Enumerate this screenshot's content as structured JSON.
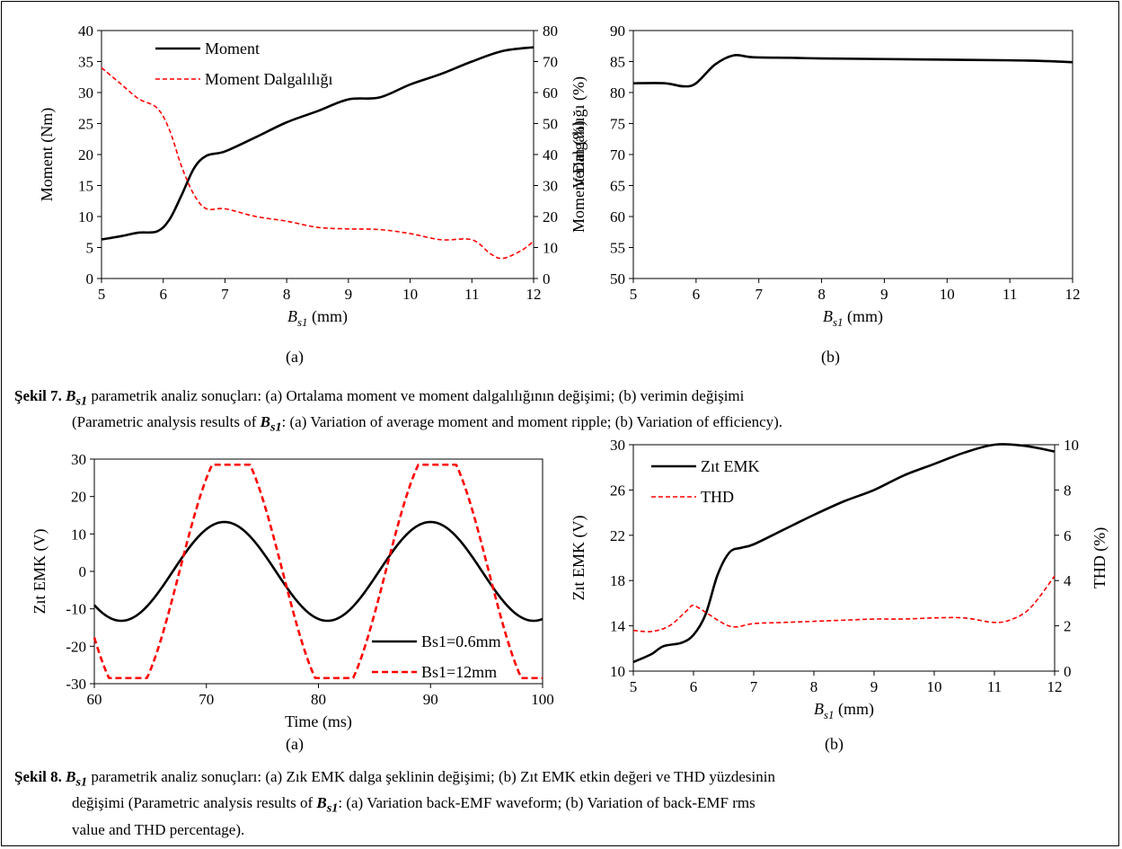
{
  "chart_data": [
    {
      "id": "fig7a",
      "type": "line",
      "xlabel_var": "B",
      "xlabel_sub": "s1",
      "xlabel_unit": " (mm)",
      "ylabel": "Moment (Nm)",
      "y2label": "Moment Dalgalılığı (%)",
      "xlim": [
        5,
        12
      ],
      "ylim": [
        0,
        40
      ],
      "y2lim": [
        0,
        80
      ],
      "xticks": [
        5,
        6,
        7,
        8,
        9,
        10,
        11,
        12
      ],
      "yticks": [
        0,
        5,
        10,
        15,
        20,
        25,
        30,
        35,
        40
      ],
      "y2ticks": [
        0,
        10,
        20,
        30,
        40,
        50,
        60,
        70,
        80
      ],
      "legend_position": "top-left",
      "series": [
        {
          "name": "Moment",
          "axis": "left",
          "style": "solid",
          "color": "#000000",
          "x": [
            5,
            5.3,
            5.6,
            5.9,
            6.1,
            6.3,
            6.5,
            6.7,
            7,
            7.5,
            8,
            8.5,
            9,
            9.5,
            10,
            10.5,
            11,
            11.5,
            12
          ],
          "y": [
            6.3,
            6.8,
            7.4,
            7.6,
            9.5,
            13.5,
            17.8,
            19.8,
            20.5,
            22.8,
            25.2,
            27,
            28.9,
            29.2,
            31.3,
            33,
            35,
            36.7,
            37.3
          ]
        },
        {
          "name": "Moment Dalgalılığı",
          "axis": "right",
          "style": "dashed",
          "color": "#ff0000",
          "x": [
            5,
            5.3,
            5.6,
            5.9,
            6.1,
            6.3,
            6.5,
            6.7,
            7,
            7.5,
            8,
            8.5,
            9,
            9.5,
            10,
            10.5,
            11,
            11.3,
            11.5,
            11.8,
            12
          ],
          "y": [
            68,
            63,
            58,
            55,
            48,
            36,
            27,
            22.5,
            22.5,
            20,
            18.5,
            16.5,
            16,
            15.8,
            14.5,
            12.5,
            12.5,
            8,
            6.5,
            9,
            12
          ]
        }
      ]
    },
    {
      "id": "fig7b",
      "type": "line",
      "xlabel_var": "B",
      "xlabel_sub": "s1",
      "xlabel_unit": " (mm)",
      "ylabel": "Verim (%)",
      "xlim": [
        5,
        12
      ],
      "ylim": [
        50,
        90
      ],
      "xticks": [
        5,
        6,
        7,
        8,
        9,
        10,
        11,
        12
      ],
      "yticks": [
        50,
        55,
        60,
        65,
        70,
        75,
        80,
        85,
        90
      ],
      "series": [
        {
          "axis": "left",
          "style": "solid",
          "color": "#000000",
          "x": [
            5,
            5.5,
            5.8,
            6,
            6.3,
            6.6,
            6.9,
            7.5,
            8,
            9,
            10,
            11,
            11.5,
            12
          ],
          "y": [
            81.5,
            81.5,
            81,
            81.5,
            84.5,
            86,
            85.7,
            85.6,
            85.5,
            85.4,
            85.3,
            85.2,
            85.1,
            84.9
          ]
        }
      ]
    },
    {
      "id": "fig8a",
      "type": "line",
      "xlabel": "Time (ms)",
      "ylabel": "Zıt EMK (V)",
      "xlim": [
        60,
        100
      ],
      "ylim": [
        -30,
        30
      ],
      "xticks": [
        60,
        70,
        80,
        90,
        100
      ],
      "yticks": [
        -30,
        -20,
        -10,
        0,
        10,
        20,
        30
      ],
      "legend_position": "bottom-right",
      "series": [
        {
          "name": "Bs1=0.6mm",
          "axis": "left",
          "style": "solid",
          "color": "#000000",
          "wave": "sine",
          "amp": 13.2,
          "period": 18.4,
          "peak_x": 71.6
        },
        {
          "name": "Bs1=12mm",
          "axis": "left",
          "style": "dashed",
          "color": "#ff0000",
          "wave": "clipped-sine",
          "amp": 34,
          "clip": 28.5,
          "period": 18.4,
          "peak_x": 72.2
        }
      ]
    },
    {
      "id": "fig8b",
      "type": "line",
      "xlabel_var": "B",
      "xlabel_sub": "s1",
      "xlabel_unit": " (mm)",
      "ylabel": "Zıt EMK (V)",
      "y2label": "THD (%)",
      "xlim": [
        5,
        12
      ],
      "ylim": [
        10,
        30
      ],
      "y2lim": [
        0,
        10
      ],
      "xticks": [
        5,
        6,
        7,
        8,
        9,
        10,
        11,
        12
      ],
      "yticks": [
        10,
        14,
        18,
        22,
        26,
        30
      ],
      "y2ticks": [
        0,
        2,
        4,
        6,
        8,
        10
      ],
      "legend_position": "top-left",
      "series": [
        {
          "name": "Zıt EMK",
          "axis": "left",
          "style": "solid",
          "color": "#000000",
          "x": [
            5,
            5.3,
            5.5,
            5.8,
            6,
            6.2,
            6.4,
            6.6,
            6.8,
            7,
            7.5,
            8,
            8.5,
            9,
            9.5,
            10,
            10.5,
            11,
            11.5,
            12
          ],
          "y": [
            10.8,
            11.5,
            12.2,
            12.5,
            13.2,
            15,
            18.5,
            20.5,
            20.9,
            21.2,
            22.5,
            23.8,
            25,
            26,
            27.3,
            28.3,
            29.3,
            30,
            29.9,
            29.4
          ]
        },
        {
          "name": "THD",
          "axis": "right",
          "style": "dashed",
          "color": "#ff0000",
          "x": [
            5,
            5.3,
            5.6,
            5.9,
            6,
            6.2,
            6.5,
            6.7,
            7,
            7.5,
            8,
            8.5,
            9,
            9.5,
            10,
            10.5,
            11,
            11.3,
            11.6,
            12
          ],
          "y": [
            1.8,
            1.75,
            2,
            2.7,
            2.9,
            2.6,
            2.1,
            1.95,
            2.1,
            2.15,
            2.2,
            2.25,
            2.3,
            2.3,
            2.35,
            2.35,
            2.15,
            2.3,
            2.8,
            4.2
          ]
        }
      ]
    }
  ],
  "labels": {
    "sub_a": "(a)",
    "sub_b": "(b)"
  },
  "captions": {
    "fig7": {
      "prefix": "Şekil 7.",
      "symbol_base": "B",
      "symbol_sub": "s1",
      "line1": " parametrik analiz sonuçları: (a) Ortalama moment ve moment dalgalılığının değişimi; (b) verimin değişimi",
      "line2_pre": "(Parametric analysis results of ",
      "line2_post": ": (a) Variation of average moment and moment ripple; (b) Variation of efficiency)."
    },
    "fig8": {
      "prefix": "Şekil 8.",
      "symbol_base": "B",
      "symbol_sub": "s1",
      "line1": " parametrik analiz sonuçları: (a) Zık EMK dalga şeklinin değişimi; (b) Zıt EMK etkin değeri ve THD yüzdesinin",
      "line2_pre": "değişimi (Parametric analysis results of ",
      "line2_post": ": (a) Variation back-EMF waveform; (b) Variation of back-EMF rms",
      "line3": "value and THD percentage)."
    }
  }
}
